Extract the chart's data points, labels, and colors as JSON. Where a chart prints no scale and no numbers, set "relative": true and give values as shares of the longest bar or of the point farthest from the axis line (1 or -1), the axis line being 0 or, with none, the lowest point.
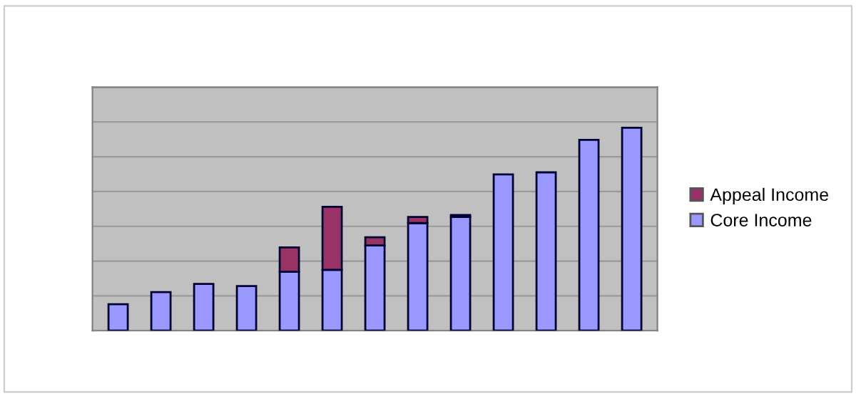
{
  "chart_data": {
    "type": "bar",
    "stacked": true,
    "relative": true,
    "categories": [
      null,
      null,
      null,
      null,
      null,
      null,
      null,
      null,
      null,
      null,
      null,
      null,
      null
    ],
    "series": [
      {
        "name": "Core Income",
        "color": "#9999ff",
        "values": [
          0.13,
          0.19,
          0.23,
          0.22,
          0.29,
          0.3,
          0.42,
          0.53,
          0.56,
          0.77,
          0.78,
          0.94,
          1
        ]
      },
      {
        "name": "Appeal Income",
        "color": "#993366",
        "values": [
          null,
          null,
          null,
          null,
          0.12,
          0.31,
          0.04,
          0.03,
          0.01,
          null,
          null,
          null,
          null
        ]
      }
    ],
    "grid": "y",
    "legend": "right"
  }
}
